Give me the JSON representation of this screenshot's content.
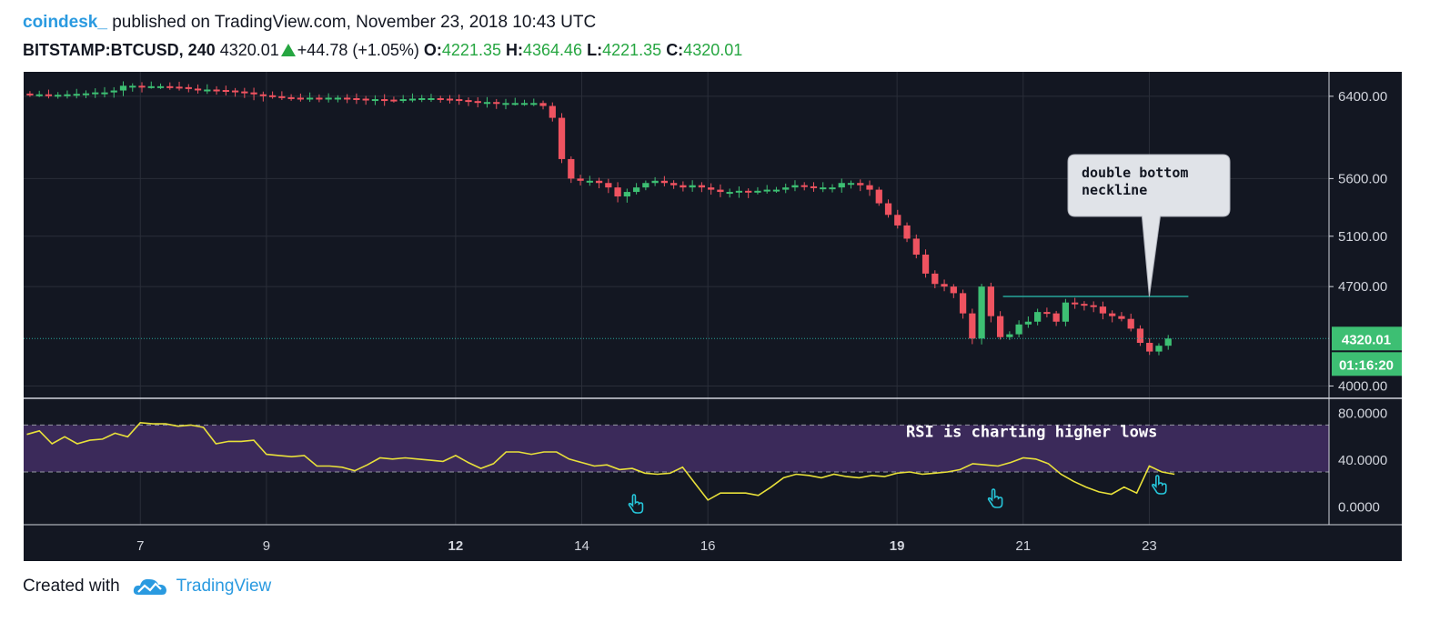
{
  "header": {
    "author": "coindesk_",
    "published_text": "published on TradingView.com, November 23, 2018 10:43 UTC",
    "symbol": "BITSTAMP:BTCUSD, 240",
    "price": "4320.01",
    "change": "+44.78 (+1.05%)",
    "open_label": "O:",
    "open": "4221.35",
    "high_label": "H:",
    "high": "4364.46",
    "low_label": "L:",
    "low": "4221.35",
    "close_label": "C:",
    "close": "4320.01"
  },
  "footer": {
    "created_with": "Created with",
    "brand": "TradingView"
  },
  "colors": {
    "background": "#131722",
    "up": "#26a69a",
    "up_green": "#3dbf73",
    "down": "#ef5360",
    "rsi_line": "#e8e03a",
    "rsi_band": "#3b2a5a",
    "trendline": "#26a69a",
    "text_up": "#26a641",
    "icon": "hand-pointer-icon"
  },
  "chart_data": [
    {
      "type": "candlestick",
      "y_axis_ticks": [
        "6400.00",
        "5600.00",
        "5100.00",
        "4700.00",
        "4000.00"
      ],
      "y_axis_scale": "log",
      "ylim": [
        3950,
        6600
      ],
      "x_axis_ticks": [
        {
          "label": "7",
          "x": 7,
          "bold": false
        },
        {
          "label": "9",
          "x": 9,
          "bold": false
        },
        {
          "label": "12",
          "x": 12,
          "bold": true
        },
        {
          "label": "14",
          "x": 14,
          "bold": false
        },
        {
          "label": "16",
          "x": 16,
          "bold": false
        },
        {
          "label": "19",
          "x": 19,
          "bold": true
        },
        {
          "label": "21",
          "x": 21,
          "bold": false
        },
        {
          "label": "23",
          "x": 23,
          "bold": false
        }
      ],
      "xlim": [
        5.15,
        25.85
      ],
      "last_price_label": "4320.01",
      "countdown_label": "01:16:20",
      "last_price": 4320.01,
      "annotation": {
        "text": [
          "double bottom",
          "neckline"
        ],
        "points_to": {
          "x": 23,
          "y": 4625
        }
      },
      "neckline": {
        "x1": 20.68,
        "x2": 23.62,
        "y": 4625
      },
      "grid": true,
      "close_series": [
        6420,
        6420,
        6410,
        6415,
        6420,
        6425,
        6430,
        6440,
        6440,
        6460,
        6510,
        6510,
        6505,
        6505,
        6505,
        6500,
        6495,
        6480,
        6470,
        6470,
        6465,
        6460,
        6450,
        6440,
        6420,
        6410,
        6400,
        6390,
        6385,
        6380,
        6385,
        6380,
        6385,
        6385,
        6380,
        6375,
        6370,
        6370,
        6365,
        6360,
        6370,
        6375,
        6380,
        6380,
        6375,
        6370,
        6360,
        6350,
        6340,
        6340,
        6330,
        6330,
        6330,
        6330,
        6330,
        6300,
        6180,
        5780,
        5600,
        5580,
        5580,
        5560,
        5520,
        5440,
        5480,
        5520,
        5560,
        5580,
        5560,
        5540,
        5520,
        5540,
        5520,
        5500,
        5480,
        5480,
        5490,
        5480,
        5490,
        5500,
        5500,
        5520,
        5540,
        5530,
        5520,
        5520,
        5520,
        5560,
        5560,
        5540,
        5500,
        5380,
        5280,
        5190,
        5080,
        4950,
        4800,
        4720,
        4700,
        4650,
        4500,
        4320,
        4700,
        4480,
        4330,
        4350,
        4420,
        4440,
        4510,
        4500,
        4440,
        4580,
        4570,
        4560,
        4550,
        4500,
        4480,
        4460,
        4390,
        4290,
        4230,
        4270,
        4320
      ]
    },
    {
      "type": "line",
      "name": "RSI",
      "y_axis_ticks": [
        "80.0000",
        "40.0000",
        "0.0000"
      ],
      "ylim": [
        -15,
        92
      ],
      "band": [
        30,
        70
      ],
      "annotation": "RSI is charting higher lows",
      "markers_at_x": [
        14.85,
        20.55,
        23.15
      ],
      "x": [
        5.2,
        5.4,
        5.6,
        5.8,
        6.0,
        6.2,
        6.4,
        6.6,
        6.8,
        7.0,
        7.2,
        7.4,
        7.6,
        7.8,
        8.0,
        8.2,
        8.4,
        8.6,
        8.8,
        9.0,
        9.2,
        9.4,
        9.6,
        9.8,
        10.0,
        10.2,
        10.4,
        10.6,
        10.8,
        11.0,
        11.2,
        11.4,
        11.6,
        11.8,
        12.0,
        12.2,
        12.4,
        12.6,
        12.8,
        13.0,
        13.2,
        13.4,
        13.6,
        13.8,
        14.0,
        14.2,
        14.4,
        14.6,
        14.8,
        15.0,
        15.2,
        15.4,
        15.6,
        15.8,
        16.0,
        16.2,
        16.4,
        16.6,
        16.8,
        17.0,
        17.2,
        17.4,
        17.6,
        17.8,
        18.0,
        18.2,
        18.4,
        18.6,
        18.8,
        19.0,
        19.2,
        19.4,
        19.6,
        19.8,
        20.0,
        20.2,
        20.4,
        20.6,
        20.8,
        21.0,
        21.2,
        21.4,
        21.6,
        21.8,
        22.0,
        22.2,
        22.4,
        22.6,
        22.8,
        23.0,
        23.2,
        23.4
      ],
      "values": [
        62,
        65,
        54,
        60,
        54,
        57,
        58,
        63,
        60,
        72,
        71,
        71,
        69,
        70,
        68,
        54,
        56,
        56,
        57,
        45,
        44,
        43,
        44,
        35,
        35,
        34,
        31,
        36,
        42,
        41,
        42,
        41,
        40,
        39,
        44,
        38,
        33,
        37,
        47,
        47,
        45,
        47,
        47,
        41,
        38,
        35,
        36,
        32,
        33,
        29,
        28,
        29,
        34,
        20,
        6,
        12,
        12,
        12,
        10,
        17,
        25,
        28,
        27,
        25,
        28,
        26,
        25,
        27,
        26,
        29,
        30,
        28,
        29,
        30,
        32,
        37,
        36,
        35,
        38,
        42,
        41,
        37,
        28,
        22,
        17,
        13,
        11,
        17,
        12,
        35,
        30,
        28
      ]
    }
  ]
}
